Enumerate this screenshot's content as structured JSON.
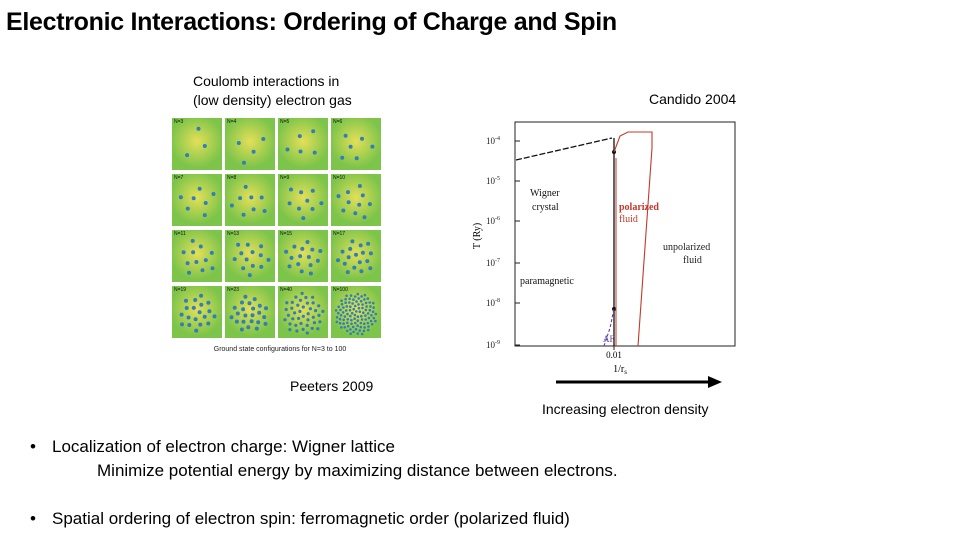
{
  "slide": {
    "title": "Electronic Interactions: Ordering of Charge and Spin"
  },
  "left_figure": {
    "caption_line1": "Coulomb interactions in",
    "caption_line2": "(low density) electron gas",
    "credit": "Peeters 2009",
    "grid_caption": "Ground state configurations for N=3 to 100",
    "cells": [
      {
        "label": "N=3",
        "dots": 3
      },
      {
        "label": "N=4",
        "dots": 4
      },
      {
        "label": "N=5",
        "dots": 5
      },
      {
        "label": "N=6",
        "dots": 6
      },
      {
        "label": "N=7",
        "dots": 7
      },
      {
        "label": "N=8",
        "dots": 8
      },
      {
        "label": "N=9",
        "dots": 9
      },
      {
        "label": "N=10",
        "dots": 10
      },
      {
        "label": "N=11",
        "dots": 11
      },
      {
        "label": "N=13",
        "dots": 13
      },
      {
        "label": "N=15",
        "dots": 15
      },
      {
        "label": "N=17",
        "dots": 17
      },
      {
        "label": "N=19",
        "dots": 19
      },
      {
        "label": "N=23",
        "dots": 23
      },
      {
        "label": "N=40",
        "dots": 40
      },
      {
        "label": "N=100",
        "dots": 100
      }
    ],
    "colors": {
      "cell_center": "#e4df58",
      "cell_edge": "#7cc44a",
      "dot": "#2f7fb8"
    }
  },
  "right_figure": {
    "credit": "Candido 2004",
    "ylabel": "T (Ry)",
    "xlabel": "1/r",
    "xlabel_sub": "s",
    "y_ticks": [
      "10",
      "10",
      "10",
      "10",
      "10",
      "10"
    ],
    "y_tick_exps": [
      "-4",
      "-5",
      "-6",
      "-7",
      "-8",
      "-9"
    ],
    "x_tick": "0.01",
    "regions": {
      "wigner_line1": "Wigner",
      "wigner_line2": "crystal",
      "polarized_line1": "polarized",
      "polarized_line2": "fluid",
      "unpolarized_line1": "unpolarized",
      "unpolarized_line2": "fluid",
      "paramagnetic": "paramagnetic",
      "af": "AF"
    },
    "colors": {
      "polarized": "#c0392b",
      "unpolarized": "#333333",
      "af": "#5b3fa8"
    }
  },
  "arrow": {
    "label": "Increasing electron density"
  },
  "bullets": {
    "marker": "•",
    "item1": "Localization of electron charge:  Wigner lattice",
    "item1_sub": "Minimize potential energy by maximizing distance between electrons.",
    "item2": "Spatial ordering of electron spin:  ferromagnetic order (polarized fluid)"
  }
}
